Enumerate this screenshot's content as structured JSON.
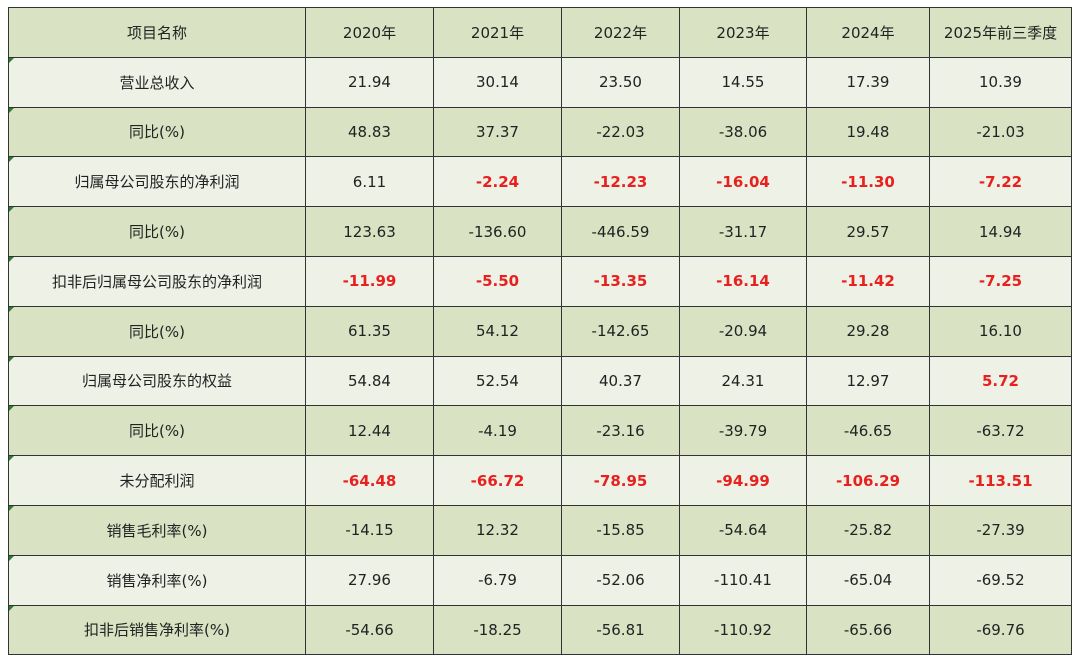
{
  "table": {
    "headers": [
      "项目名称",
      "2020年",
      "2021年",
      "2022年",
      "2023年",
      "2024年",
      "2025年前三季度"
    ],
    "rows": [
      {
        "label": "营业总收入",
        "values": [
          "21.94",
          "30.14",
          "23.50",
          "14.55",
          "17.39",
          "10.39"
        ],
        "red": [
          false,
          false,
          false,
          false,
          false,
          false
        ]
      },
      {
        "label": "同比(%)",
        "values": [
          "48.83",
          "37.37",
          "-22.03",
          "-38.06",
          "19.48",
          "-21.03"
        ],
        "red": [
          false,
          false,
          false,
          false,
          false,
          false
        ]
      },
      {
        "label": "归属母公司股东的净利润",
        "values": [
          "6.11",
          "-2.24",
          "-12.23",
          "-16.04",
          "-11.30",
          "-7.22"
        ],
        "red": [
          false,
          true,
          true,
          true,
          true,
          true
        ]
      },
      {
        "label": "同比(%)",
        "values": [
          "123.63",
          "-136.60",
          "-446.59",
          "-31.17",
          "29.57",
          "14.94"
        ],
        "red": [
          false,
          false,
          false,
          false,
          false,
          false
        ]
      },
      {
        "label": "扣非后归属母公司股东的净利润",
        "values": [
          "-11.99",
          "-5.50",
          "-13.35",
          "-16.14",
          "-11.42",
          "-7.25"
        ],
        "red": [
          true,
          true,
          true,
          true,
          true,
          true
        ]
      },
      {
        "label": "同比(%)",
        "values": [
          "61.35",
          "54.12",
          "-142.65",
          "-20.94",
          "29.28",
          "16.10"
        ],
        "red": [
          false,
          false,
          false,
          false,
          false,
          false
        ]
      },
      {
        "label": "归属母公司股东的权益",
        "values": [
          "54.84",
          "52.54",
          "40.37",
          "24.31",
          "12.97",
          "5.72"
        ],
        "red": [
          false,
          false,
          false,
          false,
          false,
          true
        ]
      },
      {
        "label": "同比(%)",
        "values": [
          "12.44",
          "-4.19",
          "-23.16",
          "-39.79",
          "-46.65",
          "-63.72"
        ],
        "red": [
          false,
          false,
          false,
          false,
          false,
          false
        ]
      },
      {
        "label": "未分配利润",
        "values": [
          "-64.48",
          "-66.72",
          "-78.95",
          "-94.99",
          "-106.29",
          "-113.51"
        ],
        "red": [
          true,
          true,
          true,
          true,
          true,
          true
        ]
      },
      {
        "label": "销售毛利率(%)",
        "values": [
          "-14.15",
          "12.32",
          "-15.85",
          "-54.64",
          "-25.82",
          "-27.39"
        ],
        "red": [
          false,
          false,
          false,
          false,
          false,
          false
        ]
      },
      {
        "label": "销售净利率(%)",
        "values": [
          "27.96",
          "-6.79",
          "-52.06",
          "-110.41",
          "-65.04",
          "-69.52"
        ],
        "red": [
          false,
          false,
          false,
          false,
          false,
          false
        ]
      },
      {
        "label": "扣非后销售净利率(%)",
        "values": [
          "-54.66",
          "-18.25",
          "-56.81",
          "-110.92",
          "-65.66",
          "-69.76"
        ],
        "red": [
          false,
          false,
          false,
          false,
          false,
          false
        ]
      }
    ]
  },
  "colors": {
    "header_bg": "#d9e3c3",
    "row_dark_bg": "#d9e3c3",
    "row_light_bg": "#eef1e6",
    "negative_highlight": "#e8201e",
    "border": "#333333"
  }
}
